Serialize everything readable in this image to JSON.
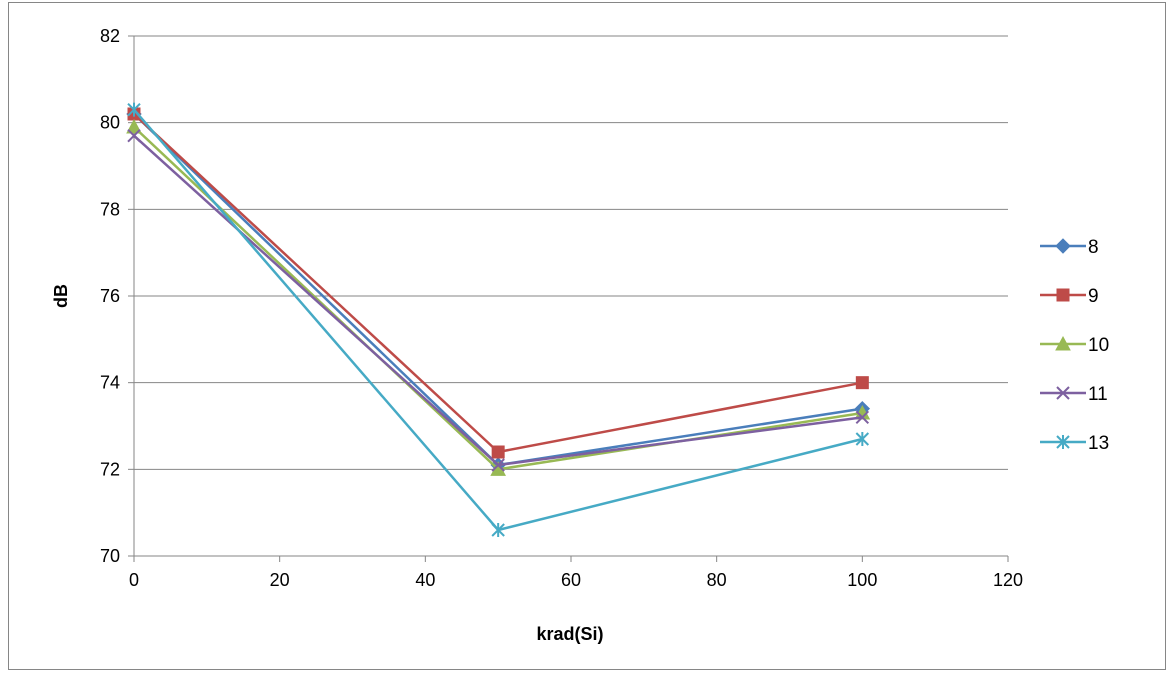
{
  "chart_data": {
    "type": "line",
    "title": "",
    "xlabel": "krad(Si)",
    "ylabel": "dB",
    "xlim": [
      0,
      120
    ],
    "ylim": [
      70,
      82
    ],
    "xticks": [
      0,
      20,
      40,
      60,
      80,
      100,
      120
    ],
    "yticks": [
      70,
      72,
      74,
      76,
      78,
      80,
      82
    ],
    "grid": "horizontal",
    "legend_position": "right",
    "x": [
      0,
      50,
      100
    ],
    "series": [
      {
        "name": "8",
        "values": [
          80.2,
          72.1,
          73.4
        ],
        "color": "#4A7EBB",
        "marker": "diamond"
      },
      {
        "name": "9",
        "values": [
          80.2,
          72.4,
          74.0
        ],
        "color": "#BE4B48",
        "marker": "square"
      },
      {
        "name": "10",
        "values": [
          79.9,
          72.0,
          73.3
        ],
        "color": "#98B954",
        "marker": "triangle"
      },
      {
        "name": "11",
        "values": [
          79.7,
          72.1,
          73.2
        ],
        "color": "#7D60A0",
        "marker": "x"
      },
      {
        "name": "13",
        "values": [
          80.3,
          70.6,
          72.7
        ],
        "color": "#46AAC5",
        "marker": "asterisk"
      }
    ]
  }
}
